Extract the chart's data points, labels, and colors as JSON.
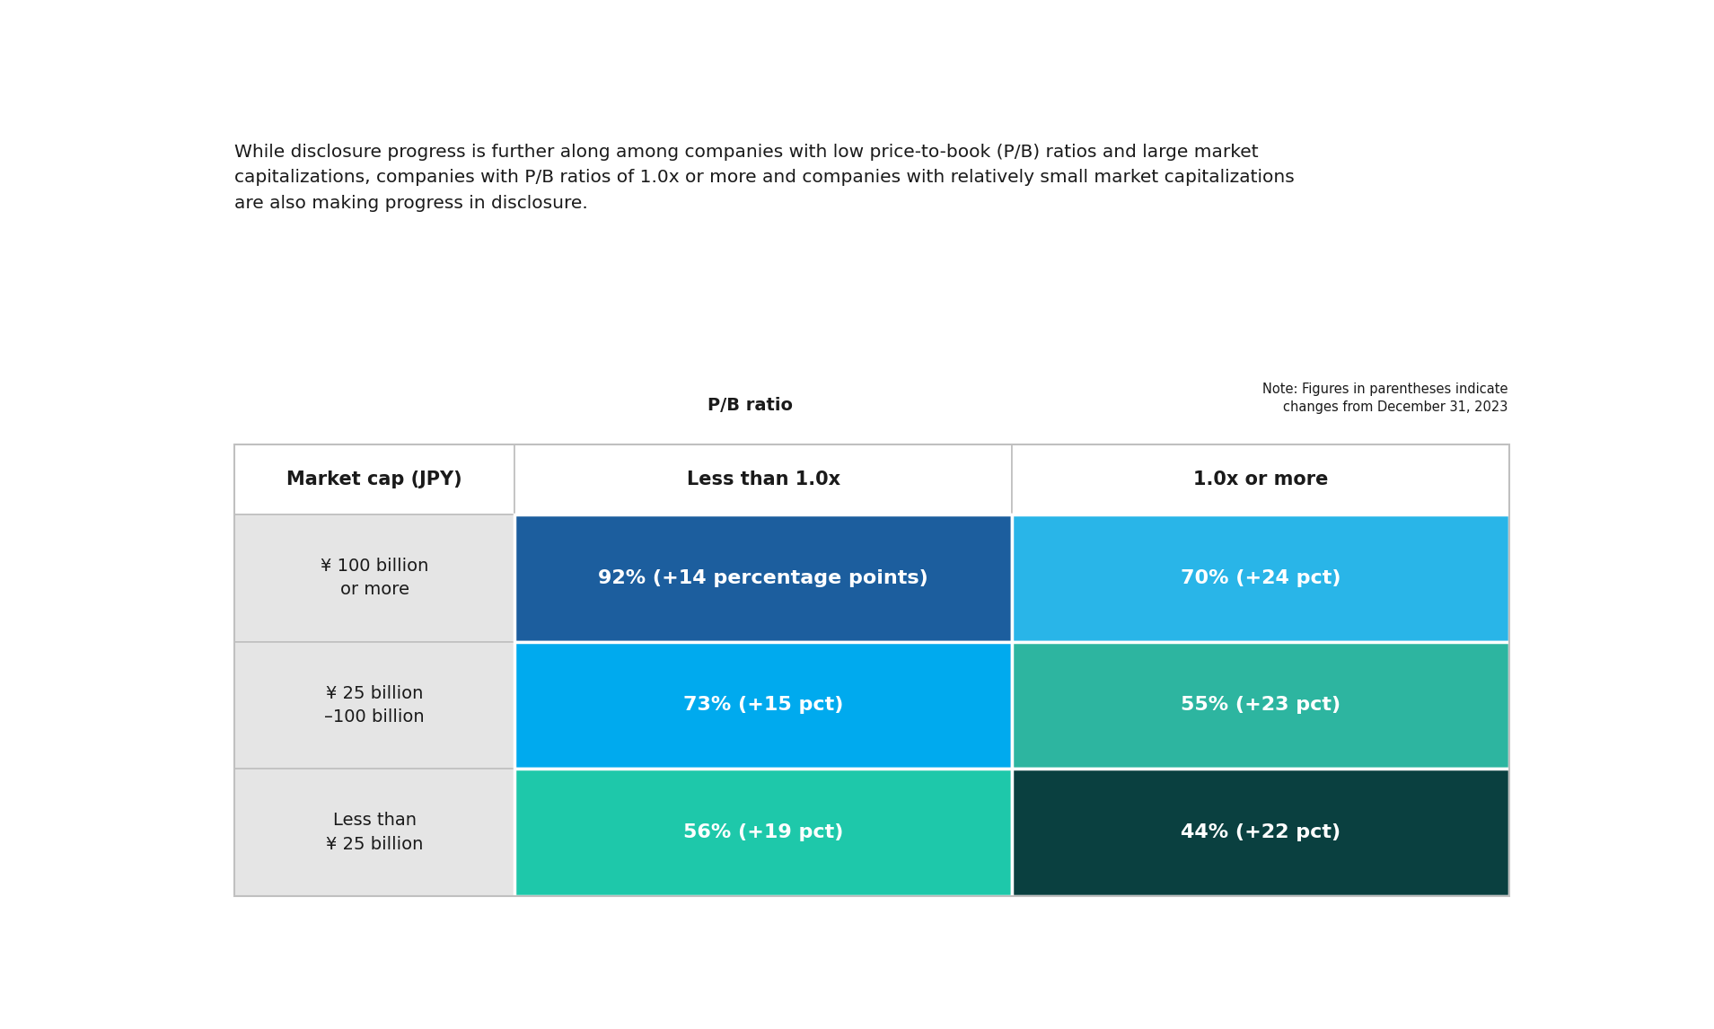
{
  "title_text": "While disclosure progress is further along among companies with low price-to-book (P/B) ratios and large market\ncapitalizations, companies with P/B ratios of 1.0x or more and companies with relatively small market capitalizations\nare also making progress in disclosure.",
  "pb_ratio_label": "P/B ratio",
  "note_text": "Note: Figures in parentheses indicate\nchanges from December 31, 2023",
  "col_headers": [
    "Market cap (JPY)",
    "Less than 1.0x",
    "1.0x or more"
  ],
  "row_labels": [
    "¥ 100 billion\nor more",
    "¥ 25 billion\n–100 billion",
    "Less than\n¥ 25 billion"
  ],
  "cell_values": [
    [
      "92% (+14 percentage points)",
      "70% (+24 pct)"
    ],
    [
      "73% (+15 pct)",
      "55% (+23 pct)"
    ],
    [
      "56% (+19 pct)",
      "44% (+22 pct)"
    ]
  ],
  "cell_colors": [
    [
      "#1c5e9e",
      "#29b5e8"
    ],
    [
      "#00aaee",
      "#2db5a0"
    ],
    [
      "#1ec8aa",
      "#0a4040"
    ]
  ],
  "header_bg": "#ffffff",
  "row_label_bg": "#e5e5e5",
  "grid_line_color": "#c0c0c0",
  "background": "#ffffff",
  "text_color_white": "#ffffff",
  "text_color_dark": "#1a1a1a",
  "title_fontsize": 14.5,
  "header_fontsize": 15,
  "cell_fontsize": 16,
  "row_label_fontsize": 14,
  "note_fontsize": 10.5,
  "pb_label_fontsize": 14
}
